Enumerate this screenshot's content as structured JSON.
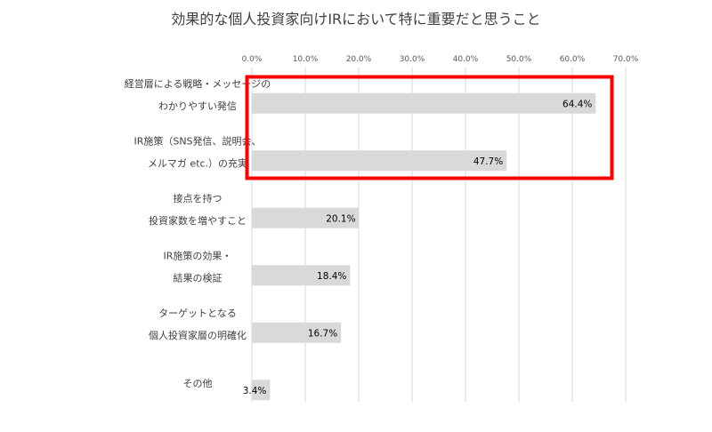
{
  "chart_data": {
    "type": "bar",
    "orientation": "horizontal",
    "title": "効果的な個人投資家向けIRにおいて特に重要だと思うこと",
    "categories": [
      [
        "経営層による戦略・メッセージの",
        "わかりやすい発信"
      ],
      [
        "IR施策（SNS発信、説明会、",
        "メルマガ etc.）の充実"
      ],
      [
        "接点を持つ",
        "投資家数を増やすこと"
      ],
      [
        "IR施策の効果・",
        "結果の検証"
      ],
      [
        "ターゲットとなる",
        "個人投資家層の明確化"
      ],
      [
        "その他"
      ]
    ],
    "values": [
      64.4,
      47.7,
      20.1,
      18.4,
      16.7,
      3.4
    ],
    "value_labels": [
      "64.4%",
      "47.7%",
      "20.1%",
      "18.4%",
      "16.7%",
      "3.4%"
    ],
    "xlim": [
      0,
      70
    ],
    "ticks": [
      0,
      10,
      20,
      30,
      40,
      50,
      60,
      70
    ],
    "tick_labels": [
      "0.0%",
      "10.0%",
      "20.0%",
      "30.0%",
      "40.0%",
      "50.0%",
      "60.0%",
      "70.0%"
    ],
    "tick_position": "top",
    "grid": true,
    "highlight_first_n": 2,
    "colors": {
      "bar": "#d9d9d9",
      "grid": "#d9d9d9",
      "highlight": "#ff0000"
    }
  }
}
